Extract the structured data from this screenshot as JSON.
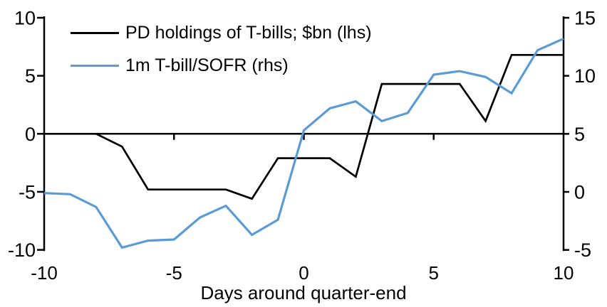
{
  "chart_data": {
    "type": "line",
    "title": "",
    "xlabel": "Days around quarter-end",
    "ylabel_left": "",
    "ylabel_right": "",
    "grid": false,
    "background_color": "#FFFFFF",
    "axis_color": "#000000",
    "x": [
      -10,
      -9,
      -8,
      -7,
      -6,
      -5,
      -4,
      -3,
      -2,
      -1,
      0,
      1,
      2,
      3,
      4,
      5,
      6,
      7,
      8,
      9,
      10
    ],
    "series": [
      {
        "name": "PD holdings of T-bills; $bn (lhs)",
        "axis": "left",
        "color": "#000000",
        "values": [
          0.0,
          0.0,
          0.0,
          -1.1,
          -4.8,
          -4.8,
          -4.8,
          -4.8,
          -5.6,
          -2.1,
          -2.1,
          -2.1,
          -3.7,
          4.3,
          4.3,
          4.3,
          4.3,
          1.1,
          6.8,
          6.8,
          6.8
        ]
      },
      {
        "name": "1m T-bill/SOFR (rhs)",
        "axis": "right",
        "color": "#5B9BD5",
        "values": [
          -0.1,
          -0.2,
          -1.3,
          -4.8,
          -4.2,
          -4.1,
          -2.2,
          -1.2,
          -3.7,
          -2.4,
          5.3,
          7.2,
          7.8,
          6.1,
          6.8,
          10.1,
          10.4,
          9.9,
          8.5,
          12.2,
          13.2
        ]
      }
    ],
    "left_axis": {
      "ticks": [
        10,
        5,
        0,
        -5,
        -10
      ],
      "range": [
        -10,
        10
      ]
    },
    "right_axis": {
      "ticks": [
        15,
        10,
        5,
        0,
        -5
      ],
      "range": [
        -5,
        15
      ]
    },
    "x_axis": {
      "ticks": [
        -10,
        -5,
        0,
        5,
        10
      ],
      "range": [
        -10,
        10
      ],
      "zero_line_ticks": [
        -5,
        0,
        5
      ]
    },
    "legend": {
      "position": "top-left"
    }
  }
}
